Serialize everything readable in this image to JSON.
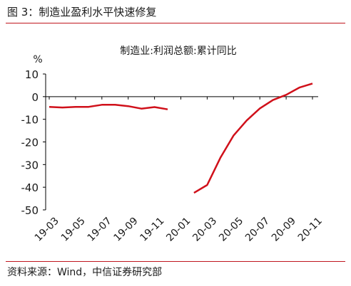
{
  "figure": {
    "title": "图 3：制造业盈利水平快速修复",
    "source": "资料来源：Wind，中信证券研究部"
  },
  "colors": {
    "accent": "#c0161e",
    "line": "#d0101a",
    "axis": "#000000"
  },
  "chart_data": {
    "type": "line",
    "title": "制造业:利润总额:累计同比",
    "ylabel": "%",
    "xlabel": "",
    "ylim": [
      -50,
      10
    ],
    "yticks": [
      10,
      0,
      -10,
      -20,
      -30,
      -40,
      -50
    ],
    "x": [
      "19-03",
      "19-04",
      "19-05",
      "19-06",
      "19-07",
      "19-08",
      "19-09",
      "19-10",
      "19-11",
      "19-12",
      "20-01",
      "20-02",
      "20-03",
      "20-04",
      "20-05",
      "20-06",
      "20-07",
      "20-08",
      "20-09",
      "20-10",
      "20-11"
    ],
    "xtick_labels": [
      "19-03",
      "19-05",
      "19-07",
      "19-09",
      "19-11",
      "20-01",
      "20-03",
      "20-05",
      "20-07",
      "20-09",
      "20-11"
    ],
    "series": [
      {
        "values": [
          -4.5,
          -4.8,
          -4.5,
          -4.5,
          -3.6,
          -3.6,
          -4.2,
          -5.3,
          -4.6,
          -5.6,
          null,
          -42.5,
          -39.0,
          -27.0,
          -17.2,
          -10.5,
          -5.2,
          -1.5,
          0.8,
          4.0,
          5.8
        ]
      }
    ],
    "grid": false,
    "legend": "none"
  }
}
